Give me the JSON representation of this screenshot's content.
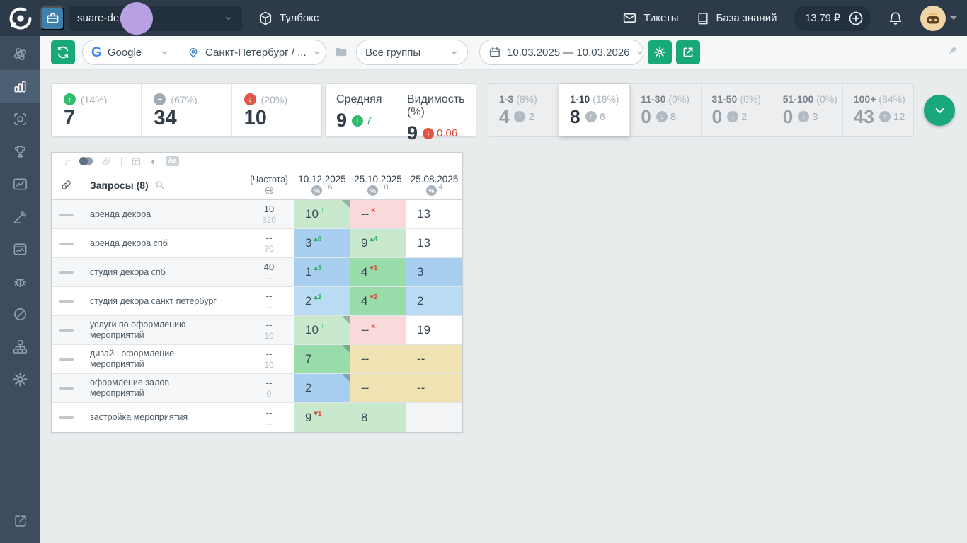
{
  "topbar": {
    "project_name": "suare-deco",
    "toolbox_label": "Тулбокс",
    "tickets_label": "Тикеты",
    "kb_label": "База знаний",
    "balance": "13.79 ₽"
  },
  "toolbar": {
    "engine_letter": "G",
    "engine_name": "Google",
    "region": "Санкт-Петербург / ...",
    "groups_label": "Все группы",
    "date_range": "10.03.2025 — 10.03.2026"
  },
  "summary": {
    "changes": [
      {
        "kind": "up",
        "pct": "(14%)",
        "value": "7"
      },
      {
        "kind": "same",
        "pct": "(67%)",
        "value": "34"
      },
      {
        "kind": "down",
        "pct": "(20%)",
        "value": "10"
      }
    ],
    "avg": {
      "label": "Средняя",
      "value": "9",
      "dir": "up",
      "delta": "7"
    },
    "visibility": {
      "label": "Видимость (%)",
      "value": "9",
      "dir": "down",
      "delta": "0.06"
    }
  },
  "distribution": [
    {
      "range": "1-3",
      "pct": "(8%)",
      "value": "4",
      "dir": "up",
      "delta": "2",
      "active": false
    },
    {
      "range": "1-10",
      "pct": "(16%)",
      "value": "8",
      "dir": "up",
      "delta": "6",
      "active": true
    },
    {
      "range": "11-30",
      "pct": "(0%)",
      "value": "0",
      "dir": "down",
      "delta": "8",
      "active": false
    },
    {
      "range": "31-50",
      "pct": "(0%)",
      "value": "0",
      "dir": "down",
      "delta": "2",
      "active": false
    },
    {
      "range": "51-100",
      "pct": "(0%)",
      "value": "0",
      "dir": "down",
      "delta": "3",
      "active": false
    },
    {
      "range": "100+",
      "pct": "(84%)",
      "value": "43",
      "dir": "up",
      "delta": "12",
      "active": false
    }
  ],
  "table": {
    "queries_label": "Запросы (8)",
    "freq_label": "[Частота]",
    "date_columns": [
      {
        "date": "10.12.2025",
        "count": "16"
      },
      {
        "date": "25.10.2025",
        "count": "10"
      },
      {
        "date": "25.08.2025",
        "count": "4"
      }
    ],
    "rows": [
      {
        "query": "аренда декора",
        "freq_top": "10",
        "freq_bottom": "320",
        "cells": [
          {
            "v": "10",
            "sup": "↑",
            "supc": "up",
            "bg": "g1",
            "corner": true
          },
          {
            "v": "--",
            "sup": "x",
            "supc": "dn",
            "bg": "pink"
          },
          {
            "v": "13",
            "bg": "wh"
          }
        ]
      },
      {
        "query": "аренда декора спб",
        "freq_top": "--",
        "freq_bottom": "70",
        "cells": [
          {
            "v": "3",
            "sup": "▴6",
            "supc": "up",
            "bg": "b1"
          },
          {
            "v": "9",
            "sup": "▴4",
            "supc": "up",
            "bg": "g1"
          },
          {
            "v": "13",
            "bg": "wh"
          }
        ]
      },
      {
        "query": "студия декора спб",
        "freq_top": "40",
        "freq_bottom": "--",
        "cells": [
          {
            "v": "1",
            "sup": "▴3",
            "supc": "up",
            "bg": "b1"
          },
          {
            "v": "4",
            "sup": "▾1",
            "supc": "dn",
            "bg": "g2"
          },
          {
            "v": "3",
            "bg": "b1"
          }
        ]
      },
      {
        "query": "студия декора санкт петербург",
        "freq_top": "--",
        "freq_bottom": "--",
        "cells": [
          {
            "v": "2",
            "sup": "▴2",
            "supc": "up",
            "bg": "b2"
          },
          {
            "v": "4",
            "sup": "▾2",
            "supc": "dn",
            "bg": "g2"
          },
          {
            "v": "2",
            "bg": "b2"
          }
        ]
      },
      {
        "query": "услуги по оформлению мероприятий",
        "freq_top": "--",
        "freq_bottom": "10",
        "cells": [
          {
            "v": "10",
            "sup": "↑",
            "supc": "up",
            "bg": "g1",
            "corner": true
          },
          {
            "v": "--",
            "sup": "x",
            "supc": "dn",
            "bg": "pink"
          },
          {
            "v": "19",
            "bg": "wh"
          }
        ]
      },
      {
        "query": "дизайн оформление мероприятий",
        "freq_top": "--",
        "freq_bottom": "10",
        "cells": [
          {
            "v": "7",
            "sup": "↑",
            "supc": "up",
            "bg": "g2",
            "corner": true
          },
          {
            "v": "--",
            "bg": "tan"
          },
          {
            "v": "--",
            "bg": "tan"
          }
        ]
      },
      {
        "query": "оформление залов мероприятий",
        "freq_top": "--",
        "freq_bottom": "0",
        "cells": [
          {
            "v": "2",
            "sup": "↑",
            "supc": "up",
            "bg": "b1",
            "corner": true
          },
          {
            "v": "--",
            "bg": "tan"
          },
          {
            "v": "--",
            "bg": "tan"
          }
        ]
      },
      {
        "query": "застройка мероприятия",
        "freq_top": "--",
        "freq_bottom": "--",
        "cells": [
          {
            "v": "9",
            "sup": "▾1",
            "supc": "dn",
            "bg": "g1"
          },
          {
            "v": "8",
            "bg": "g1"
          },
          {
            "v": "",
            "bg": "empty"
          }
        ]
      }
    ]
  },
  "sidebar": {
    "items": [
      {
        "name": "overview",
        "icon": "atom",
        "active": false
      },
      {
        "name": "positions",
        "icon": "bars",
        "active": true
      },
      {
        "name": "snapshots",
        "icon": "camera",
        "active": false
      },
      {
        "name": "competitors",
        "icon": "trophy",
        "active": false
      },
      {
        "name": "trends",
        "icon": "trend",
        "active": false
      },
      {
        "name": "bids",
        "icon": "gavel",
        "active": false
      },
      {
        "name": "snippets",
        "icon": "snippet",
        "active": false
      },
      {
        "name": "crawler",
        "icon": "bug",
        "active": false
      },
      {
        "name": "audit",
        "icon": "slash-circle",
        "active": false
      },
      {
        "name": "structure",
        "icon": "sitemap",
        "active": false
      },
      {
        "name": "settings",
        "icon": "gear",
        "active": false
      }
    ]
  }
}
